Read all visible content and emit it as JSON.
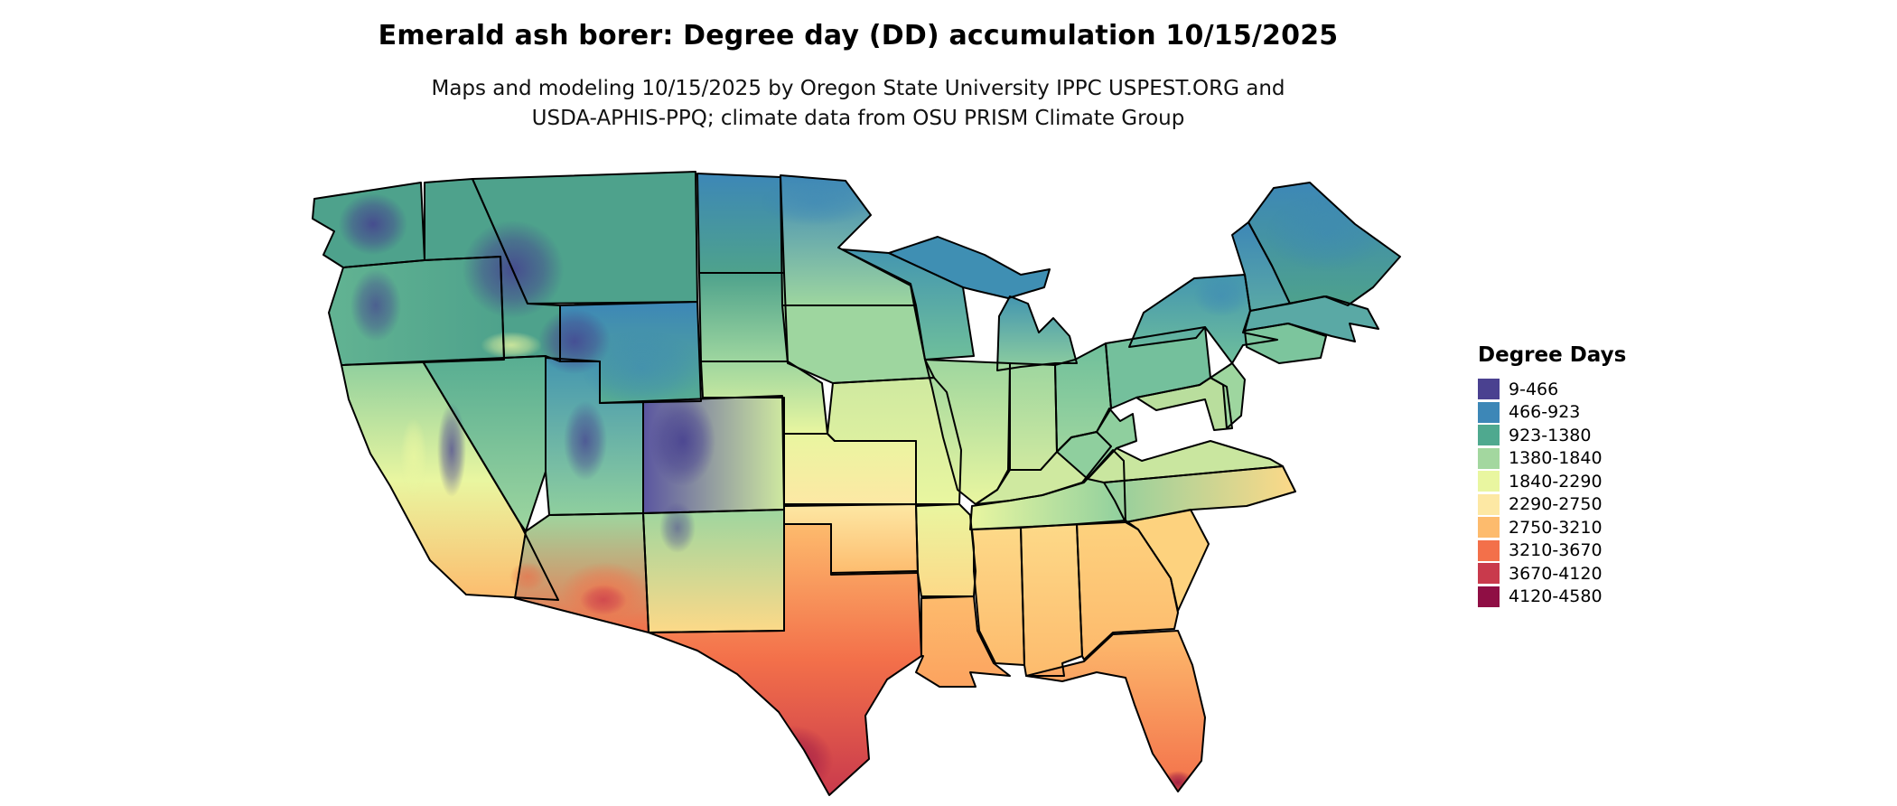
{
  "title": "Emerald ash borer: Degree day (DD) accumulation 10/15/2025",
  "subtitle_line1": "Maps and modeling 10/15/2025 by Oregon State University IPPC USPEST.ORG and",
  "subtitle_line2": "USDA-APHIS-PPQ; climate data from OSU PRISM Climate Group",
  "legend": {
    "title": "Degree Days",
    "items": [
      {
        "label": "9-466",
        "color": "#4a4190"
      },
      {
        "label": "466-923",
        "color": "#3d87b7"
      },
      {
        "label": "923-1380",
        "color": "#4fa98f"
      },
      {
        "label": "1380-1840",
        "color": "#a3d79f"
      },
      {
        "label": "1840-2290",
        "color": "#e9f6a0"
      },
      {
        "label": "2290-2750",
        "color": "#fde8a4"
      },
      {
        "label": "2750-3210",
        "color": "#fdbb6d"
      },
      {
        "label": "3210-3670",
        "color": "#f3704a"
      },
      {
        "label": "3670-4120",
        "color": "#c93a4c"
      },
      {
        "label": "4120-4580",
        "color": "#8f0e44"
      }
    ]
  },
  "map_data": {
    "type": "choropleth-raster",
    "date_shown": "10/15/2025",
    "background_color": "#ffffff",
    "border_color": "#000000",
    "states": {
      "WA": "#4ea28c",
      "OR": {
        "dir": "h",
        "stops": [
          "#62b392",
          "#4ea28c"
        ]
      },
      "CA": {
        "dir": "v",
        "stops": [
          "#8fcf9e",
          "#e9f6a0",
          "#fdbb6d"
        ]
      },
      "NV": {
        "dir": "v",
        "stops": [
          "#57ad92",
          "#9ed69f"
        ]
      },
      "ID": "#4ea28c",
      "MT": "#4ea28c",
      "WY": {
        "dir": "v",
        "stops": [
          "#3d87b7",
          "#57ad92"
        ]
      },
      "UT": {
        "dir": "v",
        "stops": [
          "#4496b0",
          "#8fcf9e"
        ]
      },
      "CO": {
        "dir": "h",
        "stops": [
          "#5a55a0",
          "#cfe9a0"
        ]
      },
      "NM": {
        "dir": "v",
        "stops": [
          "#9ed69f",
          "#fdd988"
        ]
      },
      "AZ": {
        "dir": "v",
        "stops": [
          "#9ed69f",
          "#f3704a"
        ]
      },
      "ND": {
        "dir": "v",
        "stops": [
          "#3d87b7",
          "#4ea28c"
        ]
      },
      "SD": {
        "dir": "v",
        "stops": [
          "#4ea28c",
          "#9ed69f"
        ]
      },
      "NE": {
        "dir": "v",
        "stops": [
          "#9ed69f",
          "#e9f6a0"
        ]
      },
      "KS": {
        "dir": "v",
        "stops": [
          "#e9f6a0",
          "#fde8a4"
        ]
      },
      "OK": {
        "dir": "v",
        "stops": [
          "#fde8a4",
          "#fdbb6d"
        ]
      },
      "TX": {
        "dir": "v",
        "stops": [
          "#fdbb6d",
          "#f3704a",
          "#c93a4c"
        ]
      },
      "MN": {
        "dir": "v",
        "stops": [
          "#3d87b7",
          "#9ed69f"
        ]
      },
      "IA": "#9ed69f",
      "MO": {
        "dir": "v",
        "stops": [
          "#cfe9a0",
          "#e9f6a0"
        ]
      },
      "AR": {
        "dir": "v",
        "stops": [
          "#e9f6a0",
          "#fdd988"
        ]
      },
      "LA": {
        "dir": "v",
        "stops": [
          "#fdbb6d",
          "#fca35f"
        ]
      },
      "WI": {
        "dir": "v",
        "stops": [
          "#4496b0",
          "#6fbf9b"
        ]
      },
      "MI_UP": "#3f8fb3",
      "MI_LP": {
        "dir": "v",
        "stops": [
          "#4496b0",
          "#8fcf9e"
        ]
      },
      "IL": {
        "dir": "v",
        "stops": [
          "#9ed69f",
          "#e9f6a0"
        ]
      },
      "IN": {
        "dir": "v",
        "stops": [
          "#9ed69f",
          "#cfe9a0"
        ]
      },
      "OH": {
        "dir": "v",
        "stops": [
          "#6fbf9b",
          "#9ed69f"
        ]
      },
      "KY": "#cfe9a0",
      "TN": {
        "dir": "h",
        "stops": [
          "#e9f6a0",
          "#8fcf9e"
        ]
      },
      "MS": {
        "dir": "v",
        "stops": [
          "#fdd988",
          "#fdbb6d"
        ]
      },
      "AL": {
        "dir": "v",
        "stops": [
          "#fdd988",
          "#fdbb6d"
        ]
      },
      "GA": {
        "dir": "v",
        "stops": [
          "#fdd27e",
          "#fdb96c"
        ]
      },
      "FL": {
        "dir": "v",
        "stops": [
          "#fdbb6d",
          "#f3704a"
        ]
      },
      "SC": "#fdd27e",
      "NC": {
        "dir": "h",
        "stops": [
          "#8fcf9e",
          "#fdd988"
        ]
      },
      "VA": "#c9e69f",
      "WV": "#8fcf9e",
      "PA": "#74c09c",
      "MD": "#b9de9d",
      "NJ": "#9ed69f",
      "NY": {
        "dir": "v",
        "stops": [
          "#4496b0",
          "#6fbf9b"
        ]
      },
      "CTRI": "#7cc59d",
      "MA": "#5aa9a5",
      "VTNH": {
        "dir": "v",
        "stops": [
          "#3d87b7",
          "#5aa9a5"
        ]
      },
      "ME": {
        "dir": "v",
        "stops": [
          "#3d87b7",
          "#4ea28c"
        ]
      }
    }
  }
}
